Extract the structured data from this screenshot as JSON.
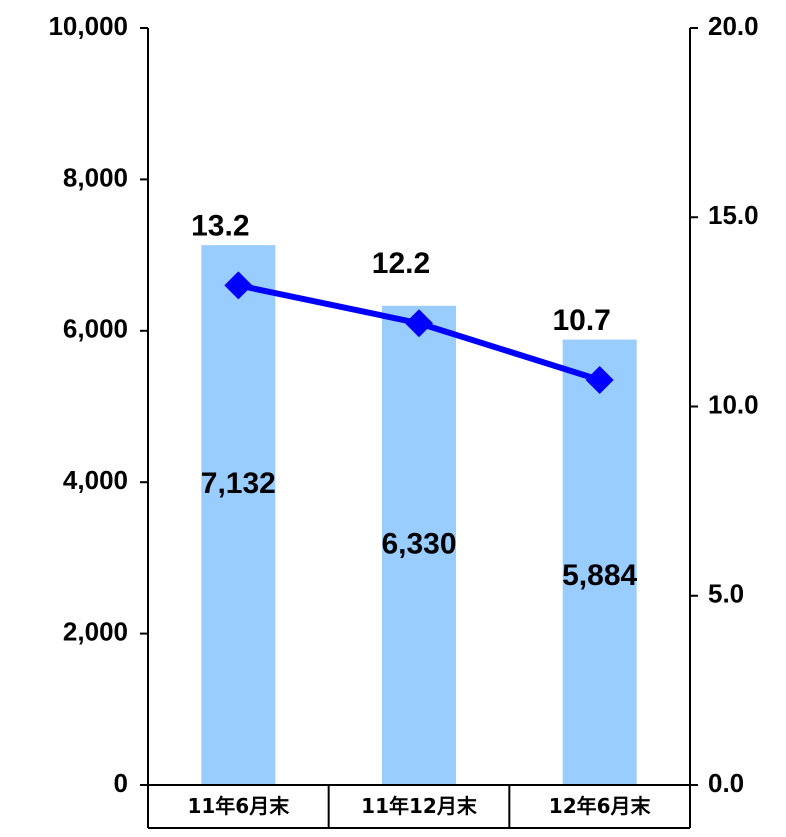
{
  "chart_data": {
    "type": "bar",
    "categories": [
      "11年6月末",
      "11年12月末",
      "12年6月末"
    ],
    "series": [
      {
        "type": "bar",
        "axis": "left",
        "values": [
          7132,
          6330,
          5884
        ],
        "data_labels": [
          "7,132",
          "6,330",
          "5,884"
        ],
        "color": "#99ccff"
      },
      {
        "type": "line",
        "axis": "right",
        "values": [
          13.2,
          12.2,
          10.7
        ],
        "data_labels": [
          "13.2",
          "12.2",
          "10.7"
        ],
        "color": "#0000ff",
        "marker": "diamond"
      }
    ],
    "y_left": {
      "ylim": [
        0,
        10000
      ],
      "ticks": [
        0,
        2000,
        4000,
        6000,
        8000,
        10000
      ],
      "tick_labels": [
        "0",
        "2,000",
        "4,000",
        "6,000",
        "8,000",
        "10,000"
      ]
    },
    "y_right": {
      "ylim": [
        0,
        20
      ],
      "ticks": [
        0,
        5,
        10,
        15,
        20
      ],
      "tick_labels": [
        "0.0",
        "5.0",
        "10.0",
        "15.0",
        "20.0"
      ]
    },
    "grid": false,
    "legend": "none",
    "category_axis_style": "table-boxes"
  }
}
